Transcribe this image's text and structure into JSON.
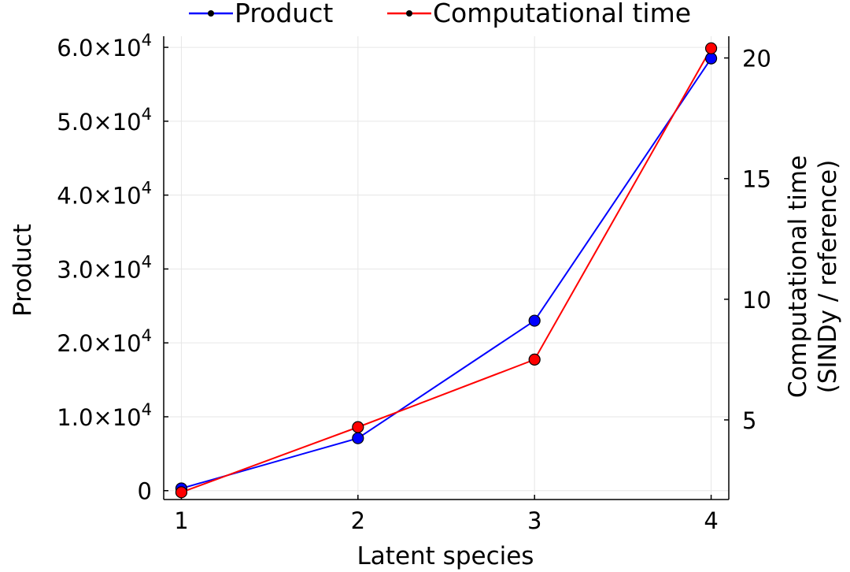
{
  "chart_data": {
    "type": "line",
    "title": "",
    "xlabel": "Latent species",
    "ylabel_left": "Product",
    "ylabel_right": [
      "Computational time",
      "(SINDy / reference)"
    ],
    "x": [
      1,
      2,
      3,
      4
    ],
    "xlim": [
      0.9,
      4.1
    ],
    "x_ticks": [
      {
        "value": 1,
        "label": "1"
      },
      {
        "value": 2,
        "label": "2"
      },
      {
        "value": 3,
        "label": "3"
      },
      {
        "value": 4,
        "label": "4"
      }
    ],
    "y_left_lim": [
      -1200,
      61500
    ],
    "y_left_ticks": [
      {
        "value": 0,
        "label": "0",
        "exp": ""
      },
      {
        "value": 10000,
        "label": "1.0×10",
        "exp": "4"
      },
      {
        "value": 20000,
        "label": "2.0×10",
        "exp": "4"
      },
      {
        "value": 30000,
        "label": "3.0×10",
        "exp": "4"
      },
      {
        "value": 40000,
        "label": "4.0×10",
        "exp": "4"
      },
      {
        "value": 50000,
        "label": "5.0×10",
        "exp": "4"
      },
      {
        "value": 60000,
        "label": "6.0×10",
        "exp": "4"
      }
    ],
    "y_right_lim": [
      1.7,
      20.9
    ],
    "y_right_ticks": [
      {
        "value": 5,
        "label": "5"
      },
      {
        "value": 10,
        "label": "10"
      },
      {
        "value": 15,
        "label": "15"
      },
      {
        "value": 20,
        "label": "20"
      }
    ],
    "grid": true,
    "legend_position": "top",
    "series": [
      {
        "name": "Product",
        "axis": "left",
        "color": "#0000ff",
        "values": [
          300,
          7100,
          23000,
          58500
        ]
      },
      {
        "name": "Computational time",
        "axis": "right",
        "color": "#ff0000",
        "values": [
          2.0,
          4.7,
          7.5,
          20.4
        ]
      }
    ]
  }
}
